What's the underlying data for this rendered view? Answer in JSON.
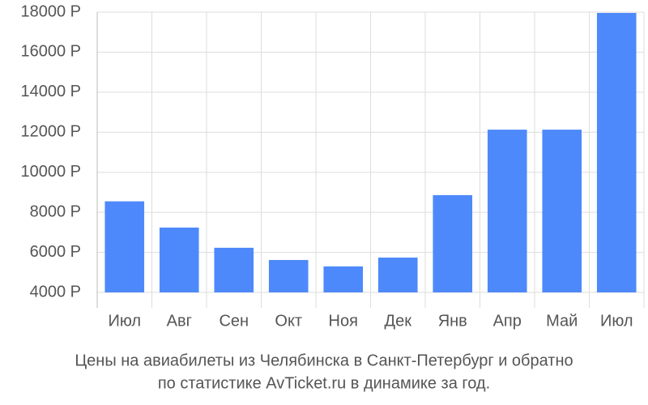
{
  "chart_data": {
    "type": "bar",
    "title": [
      "Цены на авиабилеты из Челябинска в Санкт-Петербург и обратно",
      "по статистике AvTicket.ru в динамике за год."
    ],
    "categories": [
      "Июл",
      "Авг",
      "Сен",
      "Окт",
      "Ноя",
      "Дек",
      "Янв",
      "Апр",
      "Май",
      "Июл"
    ],
    "values": [
      8550,
      7240,
      6230,
      5620,
      5300,
      5740,
      8860,
      12130,
      12130,
      17960
    ],
    "color": "#4e89fb",
    "ylim": [
      4000,
      18000
    ],
    "yticks": [
      {
        "value": 4000,
        "label": "4000 Р"
      },
      {
        "value": 6000,
        "label": "6000 Р"
      },
      {
        "value": 8000,
        "label": "8000 Р"
      },
      {
        "value": 10000,
        "label": "10000 Р"
      },
      {
        "value": 12000,
        "label": "12000 Р"
      },
      {
        "value": 14000,
        "label": "14000 Р"
      },
      {
        "value": 16000,
        "label": "16000 Р"
      },
      {
        "value": 18000,
        "label": "18000 Р"
      }
    ],
    "grid": true
  }
}
